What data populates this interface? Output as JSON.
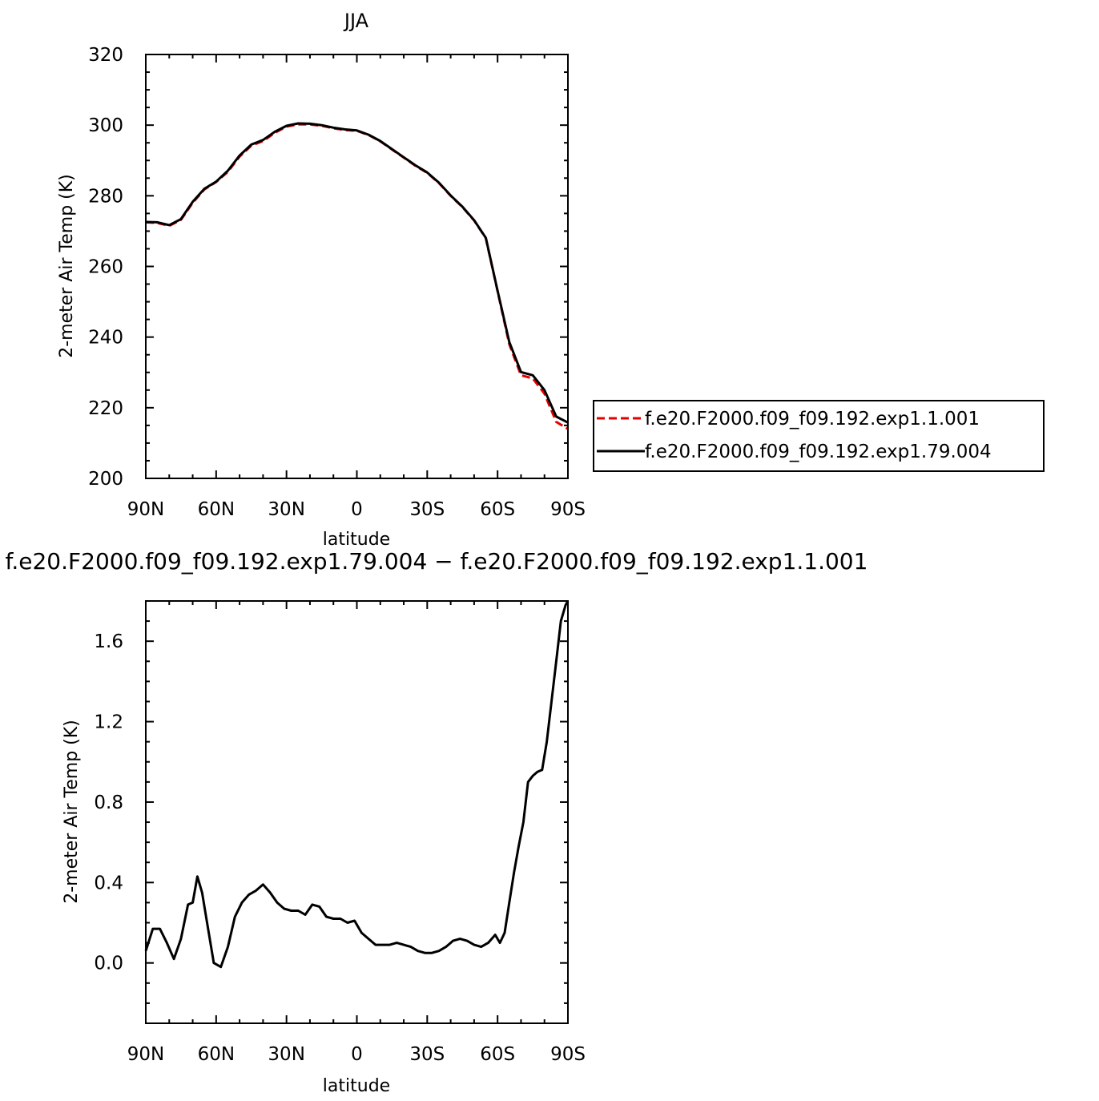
{
  "chart_data": [
    {
      "type": "line",
      "title": "JJA",
      "xlabel": "latitude",
      "ylabel": "2-meter Air Temp (K)",
      "xlim": [
        90,
        -90
      ],
      "ylim": [
        200,
        320
      ],
      "xticks": [
        90,
        60,
        30,
        0,
        -30,
        -60,
        -90
      ],
      "xtick_labels": [
        "90N",
        "60N",
        "30N",
        "0",
        "30S",
        "60S",
        "90S"
      ],
      "yticks": [
        200,
        220,
        240,
        260,
        280,
        300,
        320
      ],
      "ytick_labels": [
        "200",
        "220",
        "240",
        "260",
        "280",
        "300",
        "320"
      ],
      "grid": false,
      "legend_position": "right",
      "series": [
        {
          "name": "f.e20.F2000.f09_f09.192.exp1.1.001",
          "color": "#e60000",
          "dash": "dashed",
          "x": [
            90,
            85,
            80,
            75,
            70,
            65,
            60,
            55,
            50,
            45,
            40,
            35,
            30,
            25,
            20,
            15,
            10,
            5,
            0,
            -5,
            -10,
            -15,
            -20,
            -25,
            -30,
            -35,
            -40,
            -45,
            -50,
            -55,
            -60,
            -65,
            -70,
            -75,
            -80,
            -85,
            -90
          ],
          "y": [
            272.5,
            272.3,
            271.5,
            273.2,
            278.0,
            281.8,
            283.9,
            286.8,
            291.1,
            294.2,
            295.5,
            297.8,
            299.6,
            300.2,
            300.2,
            299.8,
            299.1,
            298.6,
            298.4,
            297.2,
            295.4,
            293.1,
            290.8,
            288.5,
            286.5,
            283.6,
            280.0,
            276.8,
            273.0,
            268.0,
            253.0,
            238.0,
            229.2,
            228.3,
            224.0,
            216.0,
            214.0
          ]
        },
        {
          "name": "f.e20.F2000.f09_f09.192.exp1.79.004",
          "color": "#000000",
          "dash": "solid",
          "x": [
            90,
            85,
            80,
            75,
            70,
            65,
            60,
            55,
            50,
            45,
            40,
            35,
            30,
            25,
            20,
            15,
            10,
            5,
            0,
            -5,
            -10,
            -15,
            -20,
            -25,
            -30,
            -35,
            -40,
            -45,
            -50,
            -55,
            -60,
            -65,
            -70,
            -75,
            -80,
            -85,
            -90
          ],
          "y": [
            272.6,
            272.5,
            271.7,
            273.4,
            278.3,
            282.0,
            284.0,
            287.1,
            291.4,
            294.5,
            295.8,
            298.1,
            299.8,
            300.5,
            300.4,
            300.0,
            299.3,
            298.8,
            298.5,
            297.3,
            295.5,
            293.2,
            290.9,
            288.6,
            286.6,
            283.7,
            280.1,
            276.9,
            273.1,
            268.1,
            253.1,
            238.6,
            230.1,
            229.2,
            225.0,
            217.5,
            215.8
          ]
        }
      ]
    },
    {
      "type": "line",
      "title": "f.e20.F2000.f09_f09.192.exp1.79.004 − f.e20.F2000.f09_f09.192.exp1.1.001",
      "xlabel": "latitude",
      "ylabel": "2-meter Air Temp (K)",
      "xlim": [
        90,
        -90
      ],
      "ylim": [
        -0.3,
        1.8
      ],
      "xticks": [
        90,
        60,
        30,
        0,
        -30,
        -60,
        -90
      ],
      "xtick_labels": [
        "90N",
        "60N",
        "30N",
        "0",
        "30S",
        "60S",
        "90S"
      ],
      "yticks": [
        0.0,
        0.4,
        0.8,
        1.2,
        1.6
      ],
      "ytick_labels": [
        "0.0",
        "0.4",
        "0.8",
        "1.2",
        "1.6"
      ],
      "grid": false,
      "series": [
        {
          "color": "#000000",
          "dash": "solid",
          "x": [
            90,
            87,
            84,
            81,
            78,
            75,
            72,
            70,
            68,
            66,
            64,
            61,
            58,
            55,
            52,
            49,
            46,
            43,
            40,
            37,
            34,
            31,
            28,
            25,
            22,
            19,
            16,
            13,
            10,
            7,
            4,
            1,
            -2,
            -5,
            -8,
            -11,
            -14,
            -17,
            -20,
            -23,
            -26,
            -29,
            -32,
            -35,
            -38,
            -41,
            -44,
            -47,
            -50,
            -53,
            -56,
            -59,
            -61,
            -63,
            -65,
            -67,
            -69,
            -71,
            -73,
            -75,
            -77,
            -79,
            -81,
            -83,
            -85,
            -87,
            -89,
            -90
          ],
          "y": [
            0.06,
            0.17,
            0.17,
            0.1,
            0.02,
            0.12,
            0.29,
            0.3,
            0.43,
            0.35,
            0.21,
            0.0,
            -0.02,
            0.08,
            0.23,
            0.3,
            0.34,
            0.36,
            0.39,
            0.35,
            0.3,
            0.27,
            0.26,
            0.26,
            0.24,
            0.29,
            0.28,
            0.23,
            0.22,
            0.22,
            0.2,
            0.21,
            0.15,
            0.12,
            0.09,
            0.09,
            0.09,
            0.1,
            0.09,
            0.08,
            0.06,
            0.05,
            0.05,
            0.06,
            0.08,
            0.11,
            0.12,
            0.11,
            0.09,
            0.08,
            0.1,
            0.14,
            0.1,
            0.15,
            0.3,
            0.45,
            0.58,
            0.7,
            0.9,
            0.93,
            0.95,
            0.96,
            1.1,
            1.3,
            1.5,
            1.7,
            1.78,
            1.8
          ]
        }
      ]
    }
  ]
}
